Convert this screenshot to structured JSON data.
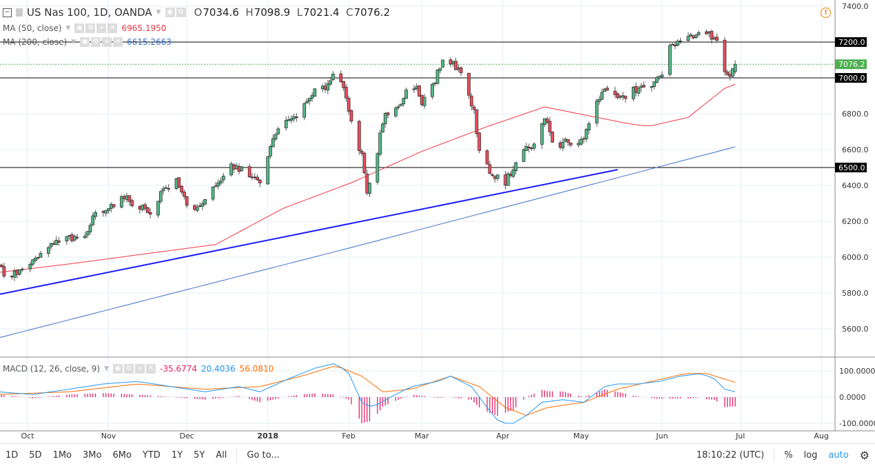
{
  "header": {
    "symbol_title": "US Nas 100, 1D, OANDA",
    "ohlc": {
      "o_label": "O",
      "o": "7034.6",
      "h_label": "H",
      "h": "7098.9",
      "l_label": "L",
      "l": "7021.4",
      "c_label": "C",
      "c": "7076.2"
    }
  },
  "indicators": {
    "ma50": {
      "label": "MA (50, close)",
      "value": "6965.1950",
      "color": "#f23645"
    },
    "ma200": {
      "label": "MA (200, close)",
      "value": "6615.2663",
      "color": "#3a6fc4"
    },
    "macd": {
      "label": "MACD (12, 26, close, 9)",
      "histogram": "-35.6774",
      "macd": "20.4036",
      "signal": "56.0810",
      "hist_color": "#e91e63",
      "macd_color": "#2196f3",
      "signal_color": "#ff6d00"
    }
  },
  "price_axis": {
    "ticks": [
      "7400.0",
      "7200.0",
      "7000.0",
      "6800.0",
      "6600.0",
      "6400.0",
      "6200.0",
      "6000.0",
      "5800.0",
      "5600.0"
    ],
    "levels": [
      {
        "value": 7200,
        "label": "7200.0"
      },
      {
        "value": 7000,
        "label": "7000.0"
      },
      {
        "value": 6500,
        "label": "6500.0"
      }
    ],
    "last_price": {
      "value": 7076.2,
      "label": "7076.2",
      "color": "#4caf50"
    }
  },
  "macd_axis": {
    "ticks": [
      "100.0000",
      "0.0000",
      "-100.0000"
    ]
  },
  "time_axis": {
    "labels": [
      {
        "date": "2017-10-01",
        "label": "Oct"
      },
      {
        "date": "2017-11-01",
        "label": "Nov"
      },
      {
        "date": "2017-12-01",
        "label": "Dec"
      },
      {
        "date": "2018-01-01",
        "label": "2018"
      },
      {
        "date": "2018-02-01",
        "label": "Feb"
      },
      {
        "date": "2018-03-01",
        "label": "Mar"
      },
      {
        "date": "2018-04-01",
        "label": "Apr"
      },
      {
        "date": "2018-05-01",
        "label": "May"
      },
      {
        "date": "2018-06-01",
        "label": "Jun"
      },
      {
        "date": "2018-07-01",
        "label": "Jul"
      },
      {
        "date": "2018-08-01",
        "label": "Aug"
      }
    ]
  },
  "toolbar": {
    "ranges": [
      "1D",
      "5D",
      "1Mo",
      "3Mo",
      "6Mo",
      "YTD",
      "1Y",
      "5Y",
      "All"
    ],
    "goto": "Go to...",
    "clock": "18:10:22 (UTC)",
    "percent": "%",
    "log": "log",
    "auto": "auto"
  },
  "colors": {
    "up": "#53b987",
    "down": "#eb4d5c",
    "trendline": "#1a1aff",
    "grid": "#e6eef7"
  },
  "chart_data": {
    "type": "candlestick",
    "symbol": "US Nas 100",
    "interval": "1D",
    "ylim": [
      5500,
      7420
    ],
    "last_bar": {
      "date": "2018-06-29",
      "open": 7034.6,
      "high": 7098.9,
      "low": 7021.4,
      "close": 7076.2
    },
    "close_path": [
      [
        "2017-09-20",
        5960
      ],
      [
        "2017-09-23",
        5880
      ],
      [
        "2017-09-29",
        5930
      ],
      [
        "2017-10-04",
        5980
      ],
      [
        "2017-10-09",
        6060
      ],
      [
        "2017-10-17",
        6110
      ],
      [
        "2017-10-22",
        6080
      ],
      [
        "2017-10-27",
        6250
      ],
      [
        "2017-11-01",
        6280
      ],
      [
        "2017-11-07",
        6330
      ],
      [
        "2017-11-12",
        6290
      ],
      [
        "2017-11-17",
        6250
      ],
      [
        "2017-11-22",
        6380
      ],
      [
        "2017-11-27",
        6420
      ],
      [
        "2017-12-01",
        6300
      ],
      [
        "2017-12-05",
        6270
      ],
      [
        "2017-12-08",
        6330
      ],
      [
        "2017-12-13",
        6400
      ],
      [
        "2017-12-18",
        6510
      ],
      [
        "2017-12-26",
        6460
      ],
      [
        "2017-12-29",
        6400
      ],
      [
        "2018-01-01",
        6560
      ],
      [
        "2018-01-04",
        6700
      ],
      [
        "2018-01-09",
        6760
      ],
      [
        "2018-01-14",
        6820
      ],
      [
        "2018-01-19",
        6920
      ],
      [
        "2018-01-23",
        6950
      ],
      [
        "2018-01-26",
        7020
      ],
      [
        "2018-01-29",
        6980
      ],
      [
        "2018-01-31",
        6900
      ],
      [
        "2018-02-03",
        6700
      ],
      [
        "2018-02-06",
        6560
      ],
      [
        "2018-02-08",
        6350
      ],
      [
        "2018-02-11",
        6500
      ],
      [
        "2018-02-14",
        6760
      ],
      [
        "2018-02-18",
        6860
      ],
      [
        "2018-02-20",
        6830
      ],
      [
        "2018-02-24",
        6950
      ],
      [
        "2018-02-27",
        6950
      ],
      [
        "2018-03-01",
        6870
      ],
      [
        "2018-03-05",
        6950
      ],
      [
        "2018-03-09",
        7100
      ],
      [
        "2018-03-12",
        7090
      ],
      [
        "2018-03-15",
        7050
      ],
      [
        "2018-03-18",
        6950
      ],
      [
        "2018-03-21",
        6810
      ],
      [
        "2018-03-23",
        6600
      ],
      [
        "2018-03-26",
        6500
      ],
      [
        "2018-03-29",
        6450
      ],
      [
        "2018-04-02",
        6420
      ],
      [
        "2018-04-05",
        6500
      ],
      [
        "2018-04-09",
        6600
      ],
      [
        "2018-04-13",
        6620
      ],
      [
        "2018-04-17",
        6780
      ],
      [
        "2018-04-19",
        6700
      ],
      [
        "2018-04-22",
        6580
      ],
      [
        "2018-04-25",
        6650
      ],
      [
        "2018-04-29",
        6600
      ],
      [
        "2018-05-03",
        6700
      ],
      [
        "2018-05-07",
        6880
      ],
      [
        "2018-05-11",
        6940
      ],
      [
        "2018-05-16",
        6880
      ],
      [
        "2018-05-21",
        6930
      ],
      [
        "2018-05-28",
        6960
      ],
      [
        "2018-06-01",
        7010
      ],
      [
        "2018-06-04",
        7200
      ],
      [
        "2018-06-08",
        7190
      ],
      [
        "2018-06-11",
        7220
      ],
      [
        "2018-06-15",
        7260
      ],
      [
        "2018-06-19",
        7240
      ],
      [
        "2018-06-22",
        7200
      ],
      [
        "2018-06-25",
        7020
      ],
      [
        "2018-06-27",
        6990
      ],
      [
        "2018-06-29",
        7076.2
      ]
    ],
    "ma50": [
      [
        "2017-09-20",
        5915
      ],
      [
        "2017-10-17",
        5962
      ],
      [
        "2017-12-12",
        6070
      ],
      [
        "2018-01-07",
        6273
      ],
      [
        "2018-02-02",
        6415
      ],
      [
        "2018-03-01",
        6590
      ],
      [
        "2018-03-25",
        6723
      ],
      [
        "2018-04-17",
        6838
      ],
      [
        "2018-05-20",
        6742
      ],
      [
        "2018-05-27",
        6730
      ],
      [
        "2018-06-11",
        6780
      ],
      [
        "2018-06-25",
        6942
      ],
      [
        "2018-06-29",
        6965.2
      ]
    ],
    "ma200": [
      [
        "2017-09-20",
        5550
      ],
      [
        "2018-02-01",
        6050
      ],
      [
        "2018-06-29",
        6615.3
      ]
    ],
    "trendline": [
      [
        "2017-09-20",
        5792
      ],
      [
        "2018-05-15",
        6488
      ]
    ],
    "macd": [
      [
        "2017-09-20",
        20
      ],
      [
        "2017-10-03",
        10
      ],
      [
        "2017-10-17",
        30
      ],
      [
        "2017-10-30",
        50
      ],
      [
        "2017-11-12",
        60
      ],
      [
        "2017-11-25",
        40
      ],
      [
        "2017-12-08",
        20
      ],
      [
        "2017-12-21",
        40
      ],
      [
        "2017-12-29",
        20
      ],
      [
        "2018-01-09",
        70
      ],
      [
        "2018-01-19",
        110
      ],
      [
        "2018-01-27",
        130
      ],
      [
        "2018-02-01",
        90
      ],
      [
        "2018-02-06",
        -20
      ],
      [
        "2018-02-10",
        -40
      ],
      [
        "2018-02-17",
        0
      ],
      [
        "2018-02-25",
        40
      ],
      [
        "2018-03-07",
        60
      ],
      [
        "2018-03-12",
        80
      ],
      [
        "2018-03-20",
        40
      ],
      [
        "2018-03-26",
        -40
      ],
      [
        "2018-03-31",
        -100
      ],
      [
        "2018-04-05",
        -100
      ],
      [
        "2018-04-10",
        -70
      ],
      [
        "2018-04-16",
        -20
      ],
      [
        "2018-04-24",
        -10
      ],
      [
        "2018-05-02",
        -20
      ],
      [
        "2018-05-10",
        40
      ],
      [
        "2018-05-15",
        50
      ],
      [
        "2018-05-23",
        50
      ],
      [
        "2018-05-31",
        60
      ],
      [
        "2018-06-08",
        80
      ],
      [
        "2018-06-16",
        90
      ],
      [
        "2018-06-21",
        70
      ],
      [
        "2018-06-25",
        30
      ],
      [
        "2018-06-29",
        20.4
      ]
    ],
    "signal": [
      [
        "2017-09-20",
        10
      ],
      [
        "2017-10-17",
        20
      ],
      [
        "2017-11-12",
        50
      ],
      [
        "2017-12-08",
        30
      ],
      [
        "2017-12-29",
        40
      ],
      [
        "2018-01-14",
        80
      ],
      [
        "2018-01-27",
        120
      ],
      [
        "2018-02-06",
        80
      ],
      [
        "2018-02-14",
        20
      ],
      [
        "2018-02-25",
        30
      ],
      [
        "2018-03-12",
        80
      ],
      [
        "2018-03-23",
        40
      ],
      [
        "2018-04-02",
        -40
      ],
      [
        "2018-04-10",
        -70
      ],
      [
        "2018-04-18",
        -40
      ],
      [
        "2018-05-02",
        -20
      ],
      [
        "2018-05-15",
        30
      ],
      [
        "2018-05-28",
        60
      ],
      [
        "2018-06-10",
        90
      ],
      [
        "2018-06-18",
        90
      ],
      [
        "2018-06-29",
        56.1
      ]
    ]
  }
}
